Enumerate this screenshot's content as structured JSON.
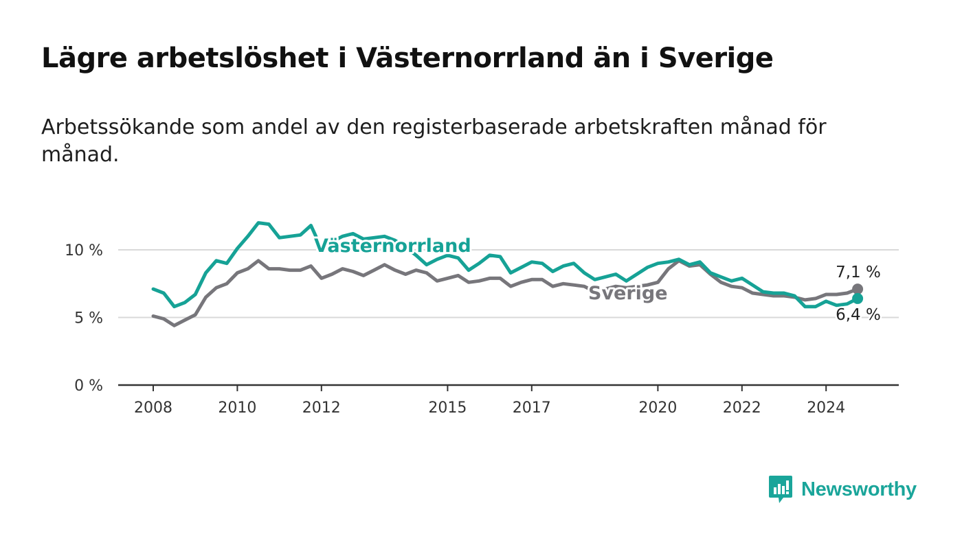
{
  "title": "Lägre arbetslöshet i Västernorrland än i Sverige",
  "subtitle": "Arbetssökande som andel av den registerbaserade arbetskraften månad för månad.",
  "brand": {
    "name": "Newsworthy",
    "icon": "newsworthy-logo-icon",
    "color": "#1aa59a"
  },
  "chart_data": {
    "type": "line",
    "title": "Lägre arbetslöshet i Västernorrland än i Sverige",
    "subtitle": "Arbetssökande som andel av den registerbaserade arbetskraften månad för månad.",
    "xlabel": "",
    "ylabel": "",
    "x_ticks": [
      "2008",
      "2010",
      "2012",
      "2015",
      "2017",
      "2020",
      "2022",
      "2024"
    ],
    "y_ticks": [
      "0 %",
      "5 %",
      "10 %"
    ],
    "ylim": [
      0,
      10
    ],
    "grid": "horizontal",
    "legend": "inline labels",
    "series": [
      {
        "name": "Västernorrland",
        "color": "#16a296",
        "end_label": "6,4 %",
        "points": [
          [
            "2008-01",
            7.1
          ],
          [
            "2008-04",
            6.8
          ],
          [
            "2008-07",
            5.8
          ],
          [
            "2008-10",
            6.1
          ],
          [
            "2009-01",
            6.7
          ],
          [
            "2009-04",
            8.3
          ],
          [
            "2009-07",
            9.2
          ],
          [
            "2009-10",
            9.0
          ],
          [
            "2010-01",
            10.1
          ],
          [
            "2010-04",
            11.0
          ],
          [
            "2010-07",
            12.0
          ],
          [
            "2010-10",
            11.9
          ],
          [
            "2011-01",
            10.9
          ],
          [
            "2011-04",
            11.0
          ],
          [
            "2011-07",
            11.1
          ],
          [
            "2011-10",
            11.8
          ],
          [
            "2012-01",
            10.1
          ],
          [
            "2012-04",
            10.6
          ],
          [
            "2012-07",
            11.0
          ],
          [
            "2012-10",
            11.2
          ],
          [
            "2013-01",
            10.8
          ],
          [
            "2013-04",
            10.9
          ],
          [
            "2013-07",
            11.0
          ],
          [
            "2013-10",
            10.7
          ],
          [
            "2014-01",
            10.2
          ],
          [
            "2014-04",
            9.6
          ],
          [
            "2014-07",
            8.9
          ],
          [
            "2014-10",
            9.3
          ],
          [
            "2015-01",
            9.6
          ],
          [
            "2015-04",
            9.4
          ],
          [
            "2015-07",
            8.5
          ],
          [
            "2015-10",
            9.0
          ],
          [
            "2016-01",
            9.6
          ],
          [
            "2016-04",
            9.5
          ],
          [
            "2016-07",
            8.3
          ],
          [
            "2016-10",
            8.7
          ],
          [
            "2017-01",
            9.1
          ],
          [
            "2017-04",
            9.0
          ],
          [
            "2017-07",
            8.4
          ],
          [
            "2017-10",
            8.8
          ],
          [
            "2018-01",
            9.0
          ],
          [
            "2018-04",
            8.3
          ],
          [
            "2018-07",
            7.8
          ],
          [
            "2018-10",
            8.0
          ],
          [
            "2019-01",
            8.2
          ],
          [
            "2019-04",
            7.7
          ],
          [
            "2019-07",
            8.2
          ],
          [
            "2019-10",
            8.7
          ],
          [
            "2020-01",
            9.0
          ],
          [
            "2020-04",
            9.1
          ],
          [
            "2020-07",
            9.3
          ],
          [
            "2020-10",
            8.9
          ],
          [
            "2021-01",
            9.1
          ],
          [
            "2021-04",
            8.3
          ],
          [
            "2021-07",
            8.0
          ],
          [
            "2021-10",
            7.7
          ],
          [
            "2022-01",
            7.9
          ],
          [
            "2022-04",
            7.4
          ],
          [
            "2022-07",
            6.9
          ],
          [
            "2022-10",
            6.8
          ],
          [
            "2023-01",
            6.8
          ],
          [
            "2023-04",
            6.6
          ],
          [
            "2023-07",
            5.8
          ],
          [
            "2023-10",
            5.8
          ],
          [
            "2024-01",
            6.2
          ],
          [
            "2024-04",
            5.9
          ],
          [
            "2024-07",
            6.0
          ],
          [
            "2024-10",
            6.4
          ]
        ]
      },
      {
        "name": "Sverige",
        "color": "#77767b",
        "end_label": "7,1 %",
        "points": [
          [
            "2008-01",
            5.1
          ],
          [
            "2008-04",
            4.9
          ],
          [
            "2008-07",
            4.4
          ],
          [
            "2008-10",
            4.8
          ],
          [
            "2009-01",
            5.2
          ],
          [
            "2009-04",
            6.5
          ],
          [
            "2009-07",
            7.2
          ],
          [
            "2009-10",
            7.5
          ],
          [
            "2010-01",
            8.3
          ],
          [
            "2010-04",
            8.6
          ],
          [
            "2010-07",
            9.2
          ],
          [
            "2010-10",
            8.6
          ],
          [
            "2011-01",
            8.6
          ],
          [
            "2011-04",
            8.5
          ],
          [
            "2011-07",
            8.5
          ],
          [
            "2011-10",
            8.8
          ],
          [
            "2012-01",
            7.9
          ],
          [
            "2012-04",
            8.2
          ],
          [
            "2012-07",
            8.6
          ],
          [
            "2012-10",
            8.4
          ],
          [
            "2013-01",
            8.1
          ],
          [
            "2013-04",
            8.5
          ],
          [
            "2013-07",
            8.9
          ],
          [
            "2013-10",
            8.5
          ],
          [
            "2014-01",
            8.2
          ],
          [
            "2014-04",
            8.5
          ],
          [
            "2014-07",
            8.3
          ],
          [
            "2014-10",
            7.7
          ],
          [
            "2015-01",
            7.9
          ],
          [
            "2015-04",
            8.1
          ],
          [
            "2015-07",
            7.6
          ],
          [
            "2015-10",
            7.7
          ],
          [
            "2016-01",
            7.9
          ],
          [
            "2016-04",
            7.9
          ],
          [
            "2016-07",
            7.3
          ],
          [
            "2016-10",
            7.6
          ],
          [
            "2017-01",
            7.8
          ],
          [
            "2017-04",
            7.8
          ],
          [
            "2017-07",
            7.3
          ],
          [
            "2017-10",
            7.5
          ],
          [
            "2018-01",
            7.4
          ],
          [
            "2018-04",
            7.3
          ],
          [
            "2018-07",
            6.9
          ],
          [
            "2018-10",
            7.1
          ],
          [
            "2019-01",
            7.3
          ],
          [
            "2019-04",
            7.2
          ],
          [
            "2019-07",
            7.3
          ],
          [
            "2019-10",
            7.4
          ],
          [
            "2020-01",
            7.6
          ],
          [
            "2020-04",
            8.6
          ],
          [
            "2020-07",
            9.2
          ],
          [
            "2020-10",
            8.8
          ],
          [
            "2021-01",
            8.9
          ],
          [
            "2021-04",
            8.2
          ],
          [
            "2021-07",
            7.6
          ],
          [
            "2021-10",
            7.3
          ],
          [
            "2022-01",
            7.2
          ],
          [
            "2022-04",
            6.8
          ],
          [
            "2022-07",
            6.7
          ],
          [
            "2022-10",
            6.6
          ],
          [
            "2023-01",
            6.6
          ],
          [
            "2023-04",
            6.5
          ],
          [
            "2023-07",
            6.3
          ],
          [
            "2023-10",
            6.4
          ],
          [
            "2024-01",
            6.7
          ],
          [
            "2024-04",
            6.7
          ],
          [
            "2024-07",
            6.8
          ],
          [
            "2024-10",
            7.1
          ]
        ]
      }
    ]
  }
}
